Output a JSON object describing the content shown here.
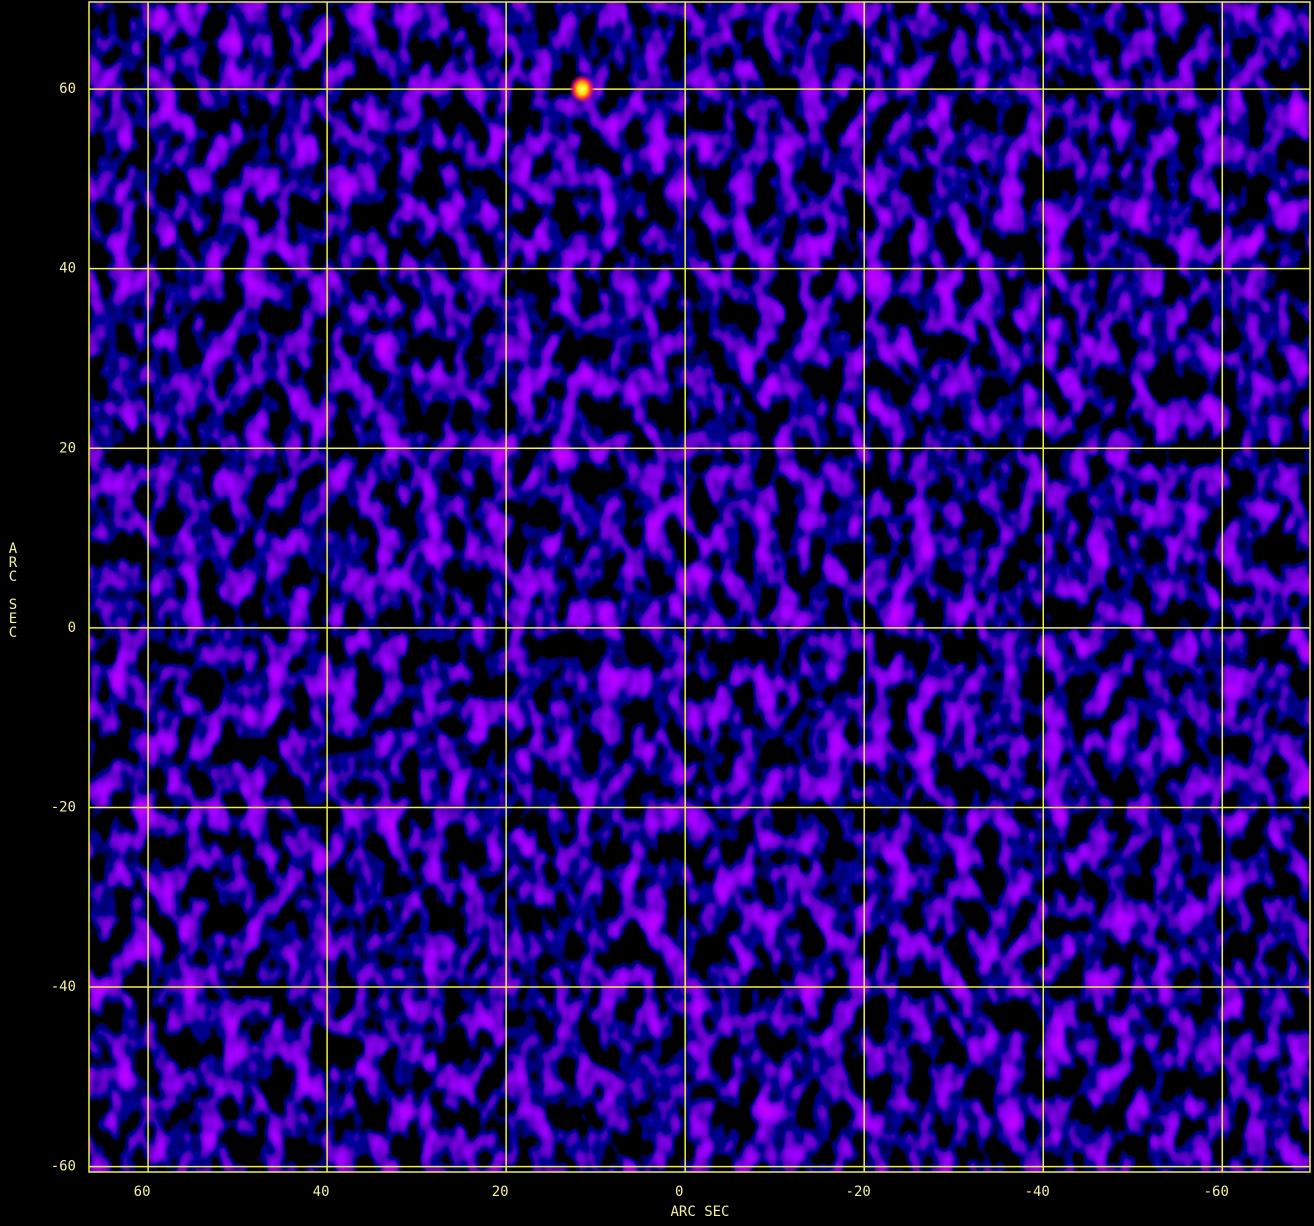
{
  "chart_data": {
    "type": "image",
    "x_label": "ARC SEC",
    "y_label": "ARC SEC",
    "xlim": [
      66.6,
      -69.8
    ],
    "ylim": [
      -60.6,
      69.7
    ],
    "xticks": [
      60,
      40,
      20,
      0,
      -20,
      -40,
      -60
    ],
    "yticks": [
      60,
      40,
      20,
      0,
      -20,
      -40,
      -60
    ],
    "grid": true,
    "grid_color": "#f0f040",
    "x": [
      11.5
    ],
    "y": [
      60
    ]
  }
}
